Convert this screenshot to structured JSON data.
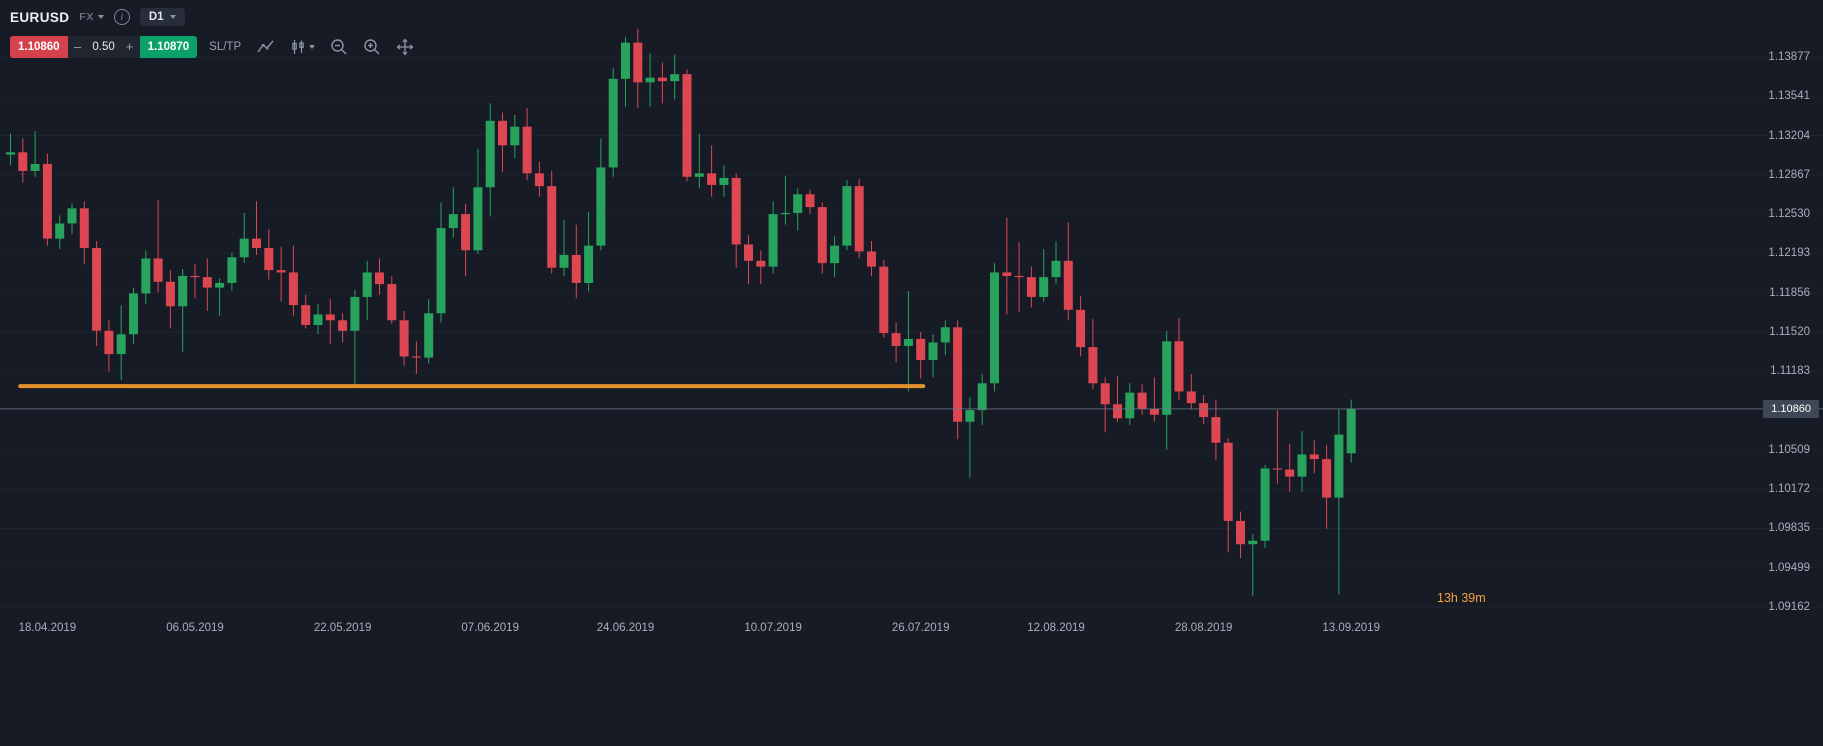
{
  "header": {
    "symbol": "EURUSD",
    "market": "FX",
    "timeframe": "D1",
    "sell_price": "1.10860",
    "minus_label": "–",
    "spread": "0.50",
    "plus_label": "+",
    "buy_price": "1.10870",
    "sltp_label": "SL/TP"
  },
  "colors": {
    "background": "#161b26",
    "sell_red": "#d6414e",
    "buy_green": "#0ba169",
    "axis_text": "#a9afba",
    "overlay_orange": "#f0992d",
    "countdown_orange": "#f5a13d"
  },
  "chart_data": {
    "type": "candlestick",
    "symbol": "EURUSD",
    "timeframe": "D1",
    "bull_color": "#27a35e",
    "bear_color": "#dd4752",
    "y_axis": {
      "ticks": [
        "1.13877",
        "1.13541",
        "1.13204",
        "1.12867",
        "1.12530",
        "1.12193",
        "1.11856",
        "1.11520",
        "1.11183",
        "1.10509",
        "1.10172",
        "1.09835",
        "1.09499",
        "1.09162"
      ],
      "current_price": "1.10860"
    },
    "x_axis": {
      "labels": [
        {
          "text": "18.04.2019",
          "index": 3
        },
        {
          "text": "06.05.2019",
          "index": 15
        },
        {
          "text": "22.05.2019",
          "index": 27
        },
        {
          "text": "07.06.2019",
          "index": 39
        },
        {
          "text": "24.06.2019",
          "index": 50
        },
        {
          "text": "10.07.2019",
          "index": 62
        },
        {
          "text": "26.07.2019",
          "index": 74
        },
        {
          "text": "12.08.2019",
          "index": 85
        },
        {
          "text": "28.08.2019",
          "index": 97
        },
        {
          "text": "13.09.2019",
          "index": 109
        }
      ]
    },
    "overlays": {
      "horizontal_line": {
        "price": 1.11055,
        "x_start_index": 1,
        "x_end_index": 74,
        "color": "#f0992d"
      },
      "current_price_line": {
        "price": 1.1086,
        "color": "#717a8c"
      }
    },
    "countdown": "13h 39m",
    "candles": [
      [
        1.1304,
        1.1322,
        1.1295,
        1.1306
      ],
      [
        1.1306,
        1.1318,
        1.128,
        1.129
      ],
      [
        1.129,
        1.1324,
        1.1285,
        1.1296
      ],
      [
        1.1296,
        1.1305,
        1.1226,
        1.1232
      ],
      [
        1.1232,
        1.1252,
        1.1223,
        1.1245
      ],
      [
        1.1245,
        1.1262,
        1.1236,
        1.1258
      ],
      [
        1.1258,
        1.1264,
        1.121,
        1.1224
      ],
      [
        1.1224,
        1.123,
        1.114,
        1.1153
      ],
      [
        1.1153,
        1.1162,
        1.1118,
        1.1133
      ],
      [
        1.1133,
        1.1175,
        1.1111,
        1.115
      ],
      [
        1.115,
        1.119,
        1.1142,
        1.1185
      ],
      [
        1.1185,
        1.1222,
        1.1176,
        1.1215
      ],
      [
        1.1215,
        1.1265,
        1.1186,
        1.1195
      ],
      [
        1.1195,
        1.1205,
        1.1155,
        1.1174
      ],
      [
        1.1174,
        1.1206,
        1.1135,
        1.12
      ],
      [
        1.12,
        1.121,
        1.1181,
        1.1199
      ],
      [
        1.1199,
        1.1215,
        1.117,
        1.119
      ],
      [
        1.119,
        1.1198,
        1.1166,
        1.1194
      ],
      [
        1.1194,
        1.122,
        1.1187,
        1.1216
      ],
      [
        1.1216,
        1.1254,
        1.1211,
        1.1232
      ],
      [
        1.1232,
        1.1264,
        1.1218,
        1.1224
      ],
      [
        1.1224,
        1.124,
        1.1197,
        1.1205
      ],
      [
        1.1205,
        1.1225,
        1.1178,
        1.1203
      ],
      [
        1.1203,
        1.1226,
        1.1166,
        1.1175
      ],
      [
        1.1175,
        1.1184,
        1.1155,
        1.1158
      ],
      [
        1.1158,
        1.1176,
        1.115,
        1.1167
      ],
      [
        1.1167,
        1.118,
        1.1142,
        1.1162
      ],
      [
        1.1162,
        1.1168,
        1.1143,
        1.1153
      ],
      [
        1.1153,
        1.1188,
        1.1107,
        1.1182
      ],
      [
        1.1182,
        1.1213,
        1.1162,
        1.1203
      ],
      [
        1.1203,
        1.1215,
        1.1184,
        1.1193
      ],
      [
        1.1193,
        1.12,
        1.1159,
        1.1162
      ],
      [
        1.1162,
        1.117,
        1.1123,
        1.1131
      ],
      [
        1.1131,
        1.1144,
        1.1116,
        1.113
      ],
      [
        1.113,
        1.118,
        1.1125,
        1.1168
      ],
      [
        1.1168,
        1.1263,
        1.116,
        1.1241
      ],
      [
        1.1241,
        1.1276,
        1.1233,
        1.1253
      ],
      [
        1.1253,
        1.1262,
        1.12,
        1.1222
      ],
      [
        1.1222,
        1.1309,
        1.1219,
        1.1276
      ],
      [
        1.1276,
        1.1348,
        1.1251,
        1.1333
      ],
      [
        1.1333,
        1.134,
        1.1289,
        1.1312
      ],
      [
        1.1312,
        1.1338,
        1.1301,
        1.1328
      ],
      [
        1.1328,
        1.1344,
        1.1282,
        1.1288
      ],
      [
        1.1288,
        1.1298,
        1.1268,
        1.1277
      ],
      [
        1.1277,
        1.129,
        1.1202,
        1.1207
      ],
      [
        1.1207,
        1.1248,
        1.12,
        1.1218
      ],
      [
        1.1218,
        1.1244,
        1.1181,
        1.1194
      ],
      [
        1.1194,
        1.1255,
        1.1187,
        1.1226
      ],
      [
        1.1226,
        1.1318,
        1.1222,
        1.1293
      ],
      [
        1.1293,
        1.1378,
        1.1285,
        1.1369
      ],
      [
        1.1369,
        1.1405,
        1.1345,
        1.14
      ],
      [
        1.14,
        1.1412,
        1.1344,
        1.1366
      ],
      [
        1.1366,
        1.1391,
        1.1345,
        1.137
      ],
      [
        1.137,
        1.1383,
        1.1348,
        1.1367
      ],
      [
        1.1367,
        1.139,
        1.1351,
        1.1373
      ],
      [
        1.1373,
        1.1377,
        1.1281,
        1.1285
      ],
      [
        1.1285,
        1.1322,
        1.1275,
        1.1288
      ],
      [
        1.1288,
        1.1312,
        1.1268,
        1.1278
      ],
      [
        1.1278,
        1.1295,
        1.1268,
        1.1284
      ],
      [
        1.1284,
        1.1288,
        1.1207,
        1.1227
      ],
      [
        1.1227,
        1.1235,
        1.1193,
        1.1213
      ],
      [
        1.1213,
        1.1222,
        1.1193,
        1.1208
      ],
      [
        1.1208,
        1.1264,
        1.1202,
        1.1253
      ],
      [
        1.1253,
        1.1286,
        1.1244,
        1.1254
      ],
      [
        1.1254,
        1.1275,
        1.1239,
        1.127
      ],
      [
        1.127,
        1.1274,
        1.1253,
        1.1259
      ],
      [
        1.1259,
        1.1263,
        1.1202,
        1.1211
      ],
      [
        1.1211,
        1.1234,
        1.1199,
        1.1226
      ],
      [
        1.1226,
        1.1282,
        1.1222,
        1.1277
      ],
      [
        1.1277,
        1.1283,
        1.1215,
        1.1221
      ],
      [
        1.1221,
        1.123,
        1.12,
        1.1208
      ],
      [
        1.1208,
        1.1214,
        1.1147,
        1.1151
      ],
      [
        1.1151,
        1.116,
        1.1126,
        1.114
      ],
      [
        1.114,
        1.1187,
        1.1101,
        1.1146
      ],
      [
        1.1146,
        1.1152,
        1.1112,
        1.1128
      ],
      [
        1.1128,
        1.115,
        1.1113,
        1.1143
      ],
      [
        1.1143,
        1.1162,
        1.1132,
        1.1156
      ],
      [
        1.1156,
        1.1162,
        1.106,
        1.1075
      ],
      [
        1.1075,
        1.1096,
        1.1027,
        1.1085
      ],
      [
        1.1085,
        1.1116,
        1.1072,
        1.1108
      ],
      [
        1.1108,
        1.1211,
        1.1101,
        1.1203
      ],
      [
        1.1203,
        1.125,
        1.1167,
        1.12
      ],
      [
        1.12,
        1.1229,
        1.1169,
        1.1199
      ],
      [
        1.1199,
        1.1208,
        1.1173,
        1.1182
      ],
      [
        1.1182,
        1.1223,
        1.1178,
        1.1199
      ],
      [
        1.1199,
        1.123,
        1.1193,
        1.1213
      ],
      [
        1.1213,
        1.1246,
        1.1162,
        1.1171
      ],
      [
        1.1171,
        1.1183,
        1.1131,
        1.1139
      ],
      [
        1.1139,
        1.1163,
        1.1103,
        1.1108
      ],
      [
        1.1108,
        1.1113,
        1.1066,
        1.109
      ],
      [
        1.109,
        1.1114,
        1.1075,
        1.1078
      ],
      [
        1.1078,
        1.1108,
        1.1072,
        1.11
      ],
      [
        1.11,
        1.1107,
        1.1081,
        1.1086
      ],
      [
        1.1086,
        1.1113,
        1.1075,
        1.1081
      ],
      [
        1.1081,
        1.1153,
        1.1051,
        1.1144
      ],
      [
        1.1144,
        1.1164,
        1.1094,
        1.1101
      ],
      [
        1.1101,
        1.1116,
        1.1086,
        1.1091
      ],
      [
        1.1091,
        1.1098,
        1.1073,
        1.1079
      ],
      [
        1.1079,
        1.1094,
        1.1042,
        1.1057
      ],
      [
        1.1057,
        1.1061,
        1.0963,
        1.099
      ],
      [
        1.099,
        1.0998,
        1.0958,
        1.097
      ],
      [
        1.097,
        1.0979,
        1.0926,
        1.0973
      ],
      [
        1.0973,
        1.1038,
        1.0967,
        1.1035
      ],
      [
        1.1035,
        1.1085,
        1.1022,
        1.1034
      ],
      [
        1.1034,
        1.1056,
        1.1015,
        1.1028
      ],
      [
        1.1028,
        1.1067,
        1.1015,
        1.1047
      ],
      [
        1.1047,
        1.1059,
        1.1031,
        1.1043
      ],
      [
        1.1043,
        1.1055,
        1.0983,
        1.101
      ],
      [
        1.101,
        1.1086,
        1.0927,
        1.1064
      ],
      [
        1.1048,
        1.1094,
        1.104,
        1.1086
      ]
    ]
  }
}
